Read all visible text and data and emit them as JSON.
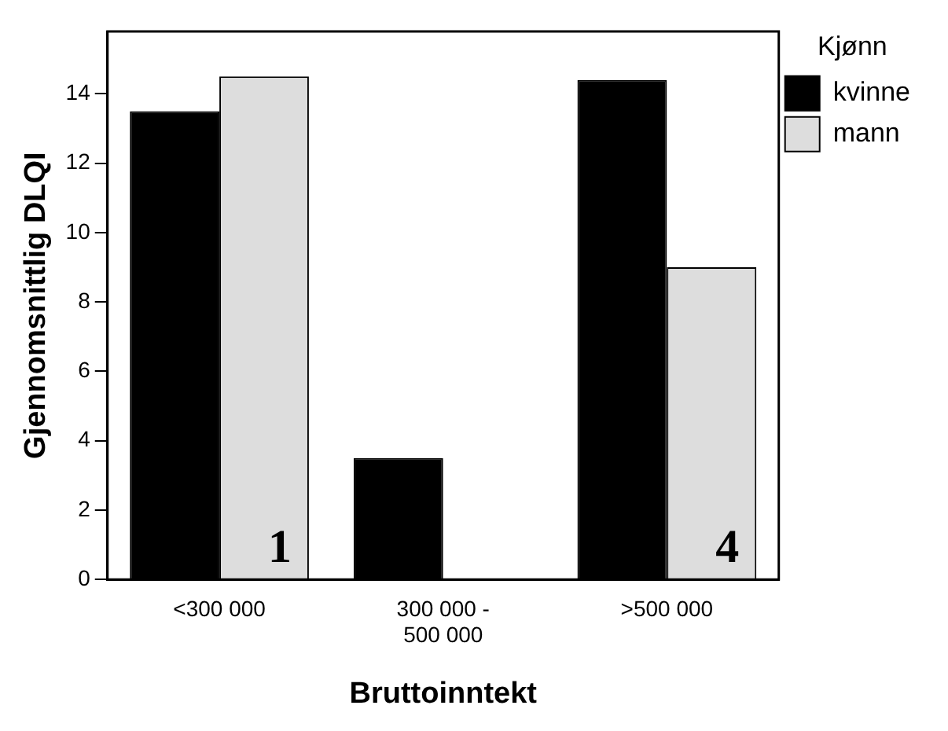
{
  "chart_data": {
    "type": "bar",
    "xlabel": "Bruttoinntekt",
    "ylabel": "Gjennomsnittlig DLQI",
    "legend_title": "Kjønn",
    "categories": [
      "<300 000",
      "300 000 -\n500 000",
      ">500 000"
    ],
    "series": [
      {
        "name": "kvinne",
        "color": "#000000",
        "values": [
          13.5,
          3.5,
          14.4
        ]
      },
      {
        "name": "mann",
        "color": "#dddddd",
        "values": [
          14.5,
          null,
          9.0
        ]
      }
    ],
    "ylim": [
      0,
      15.8
    ],
    "yticks": [
      0,
      2,
      4,
      6,
      8,
      10,
      12,
      14
    ],
    "grid": false,
    "legend": "top right",
    "annotations": [
      {
        "text": "1",
        "x": "<300 000"
      },
      {
        "text": "4",
        "x": ">500 000"
      }
    ]
  }
}
